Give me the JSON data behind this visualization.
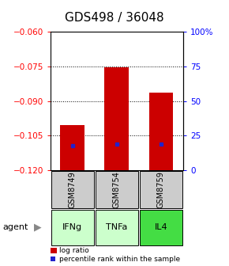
{
  "title": "GDS498 / 36048",
  "categories": [
    "GSM8749",
    "GSM8754",
    "GSM8759"
  ],
  "agents": [
    "IFNg",
    "TNFa",
    "IL4"
  ],
  "bar_tops": [
    -0.1005,
    -0.0755,
    -0.0865
  ],
  "bar_bottom": -0.12,
  "percentile_values": [
    -0.1095,
    -0.1085,
    -0.1085
  ],
  "ylim": [
    -0.12,
    -0.06
  ],
  "yticks_left": [
    -0.12,
    -0.105,
    -0.09,
    -0.075,
    -0.06
  ],
  "yticks_right_pct": [
    0,
    25,
    50,
    75,
    100
  ],
  "ytick_labels_right": [
    "0",
    "25",
    "50",
    "75",
    "100%"
  ],
  "bar_color": "#cc0000",
  "percentile_color": "#2222cc",
  "agent_bg_colors": [
    "#ccffcc",
    "#ccffcc",
    "#44dd44"
  ],
  "sample_bg_color": "#cccccc",
  "legend_log_ratio": "log ratio",
  "legend_percentile": "percentile rank within the sample",
  "agent_label": "agent",
  "title_fontsize": 11,
  "tick_fontsize": 7.5,
  "label_fontsize": 8,
  "sample_fontsize": 7,
  "agent_fontsize": 8
}
